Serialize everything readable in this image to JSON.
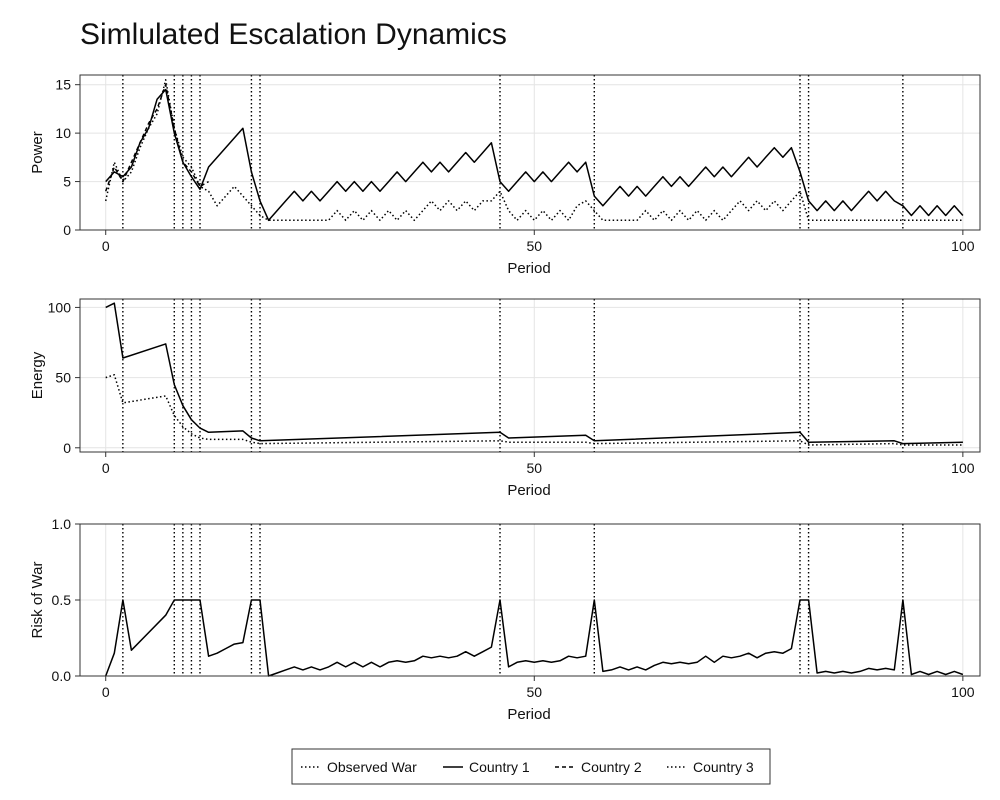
{
  "chart_data": {
    "type": "line",
    "title": "Simlulated Escalation Dynamics",
    "war_periods": [
      2,
      8,
      9,
      10,
      11,
      17,
      18,
      46,
      57,
      81,
      82,
      93
    ],
    "legend": {
      "placement": "bottom-center",
      "entries": [
        {
          "name": "Observed War",
          "style": "dotted"
        },
        {
          "name": "Country 1",
          "style": "solid"
        },
        {
          "name": "Country 2",
          "style": "dashed"
        },
        {
          "name": "Country 3",
          "style": "dotted"
        }
      ]
    },
    "panels": [
      {
        "id": "power",
        "ylabel": "Power",
        "xlabel": "Period",
        "xlim": [
          -3,
          102
        ],
        "ylim": [
          0,
          16
        ],
        "xticks": [
          0,
          50,
          100
        ],
        "yticks": [
          0,
          5,
          10,
          15
        ],
        "ytick_labels": [
          "0",
          "5",
          "10",
          "15"
        ],
        "grid": true,
        "series": [
          {
            "name": "Country 1",
            "style": "solid",
            "x": [
              0,
              1,
              2,
              3,
              4,
              5,
              6,
              7,
              8,
              9,
              10,
              11,
              12,
              16,
              17,
              18,
              19,
              20,
              21,
              22,
              23,
              24,
              25,
              26,
              27,
              28,
              29,
              30,
              31,
              32,
              33,
              34,
              35,
              36,
              37,
              38,
              39,
              40,
              41,
              42,
              43,
              44,
              45,
              46,
              47,
              48,
              49,
              50,
              51,
              52,
              53,
              54,
              55,
              56,
              57,
              58,
              59,
              60,
              61,
              62,
              63,
              64,
              65,
              66,
              67,
              68,
              69,
              70,
              71,
              72,
              73,
              74,
              75,
              76,
              77,
              78,
              79,
              80,
              81,
              82,
              83,
              84,
              85,
              86,
              87,
              88,
              89,
              90,
              91,
              92,
              93,
              94,
              95,
              96,
              97,
              98,
              99,
              100
            ],
            "y": [
              5,
              6,
              5.5,
              6.5,
              9,
              10.5,
              13.5,
              14.5,
              10,
              7,
              5.5,
              4.2,
              6.5,
              10.5,
              6,
              3,
              1,
              2,
              3,
              4,
              3,
              4,
              3,
              4,
              5,
              4,
              5,
              4,
              5,
              4,
              5,
              6,
              5,
              6,
              7,
              6,
              7,
              6,
              7,
              8,
              7,
              8,
              9,
              5,
              4,
              5,
              6,
              5,
              6,
              5,
              6,
              7,
              6,
              7,
              3.5,
              2.5,
              3.5,
              4.5,
              3.5,
              4.5,
              3.5,
              4.5,
              5.5,
              4.5,
              5.5,
              4.5,
              5.5,
              6.5,
              5.5,
              6.5,
              5.5,
              6.5,
              7.5,
              6.5,
              7.5,
              8.5,
              7.5,
              8.5,
              6,
              3,
              2,
              3,
              2,
              3,
              2,
              3,
              4,
              3,
              4,
              3,
              2.5,
              1.5,
              2.5,
              1.5,
              2.5,
              1.5,
              2.5,
              1.5
            ]
          },
          {
            "name": "Country 2",
            "style": "dashed",
            "x": [
              0,
              1,
              2,
              3,
              4,
              5,
              6,
              7,
              8,
              9,
              10,
              11,
              12
            ],
            "y": [
              4,
              6.5,
              5,
              7,
              9,
              11,
              12.5,
              15,
              10.5,
              7,
              6,
              4.5,
              5
            ]
          },
          {
            "name": "Country 3",
            "style": "dotted",
            "x": [
              0,
              1,
              2,
              3,
              4,
              5,
              6,
              7,
              8,
              9,
              10,
              11,
              12,
              13,
              14,
              15,
              16,
              17,
              18,
              19,
              20,
              21,
              22,
              23,
              24,
              25,
              26,
              27,
              28,
              29,
              30,
              31,
              32,
              33,
              34,
              35,
              36,
              37,
              38,
              39,
              40,
              41,
              42,
              43,
              44,
              45,
              46,
              47,
              48,
              49,
              50,
              51,
              52,
              53,
              54,
              55,
              56,
              57,
              58,
              59,
              60,
              61,
              62,
              63,
              64,
              65,
              66,
              67,
              68,
              69,
              70,
              71,
              72,
              73,
              74,
              75,
              76,
              77,
              78,
              79,
              80,
              81,
              82,
              83,
              84,
              85,
              86,
              87,
              88,
              89,
              90,
              91,
              92,
              93,
              94,
              95,
              96,
              97,
              98,
              99,
              100
            ],
            "y": [
              3,
              7,
              5,
              6,
              8.5,
              10.5,
              12,
              15.5,
              10.5,
              7.5,
              6.5,
              4.5,
              4,
              2.5,
              3.5,
              4.5,
              3.5,
              2.5,
              1.5,
              1,
              1,
              1,
              1,
              1,
              1,
              1,
              1,
              2,
              1,
              2,
              1,
              2,
              1,
              2,
              1,
              2,
              1,
              2,
              3,
              2,
              3,
              2,
              3,
              2,
              3,
              3,
              4,
              2,
              1,
              2,
              1,
              2,
              1,
              2,
              1,
              2.5,
              3,
              2,
              1,
              1,
              1,
              1,
              1,
              2,
              1,
              2,
              1,
              2,
              1,
              2,
              1,
              2,
              1,
              2,
              3,
              2,
              3,
              2,
              3,
              2,
              3,
              4,
              1,
              1,
              1,
              1,
              1,
              1,
              1,
              1,
              1,
              1,
              1,
              1,
              1,
              1,
              1,
              1,
              1,
              1,
              1
            ]
          }
        ]
      },
      {
        "id": "energy",
        "ylabel": "Energy",
        "xlabel": "Period",
        "xlim": [
          -3,
          102
        ],
        "ylim": [
          -3,
          106
        ],
        "xticks": [
          0,
          50,
          100
        ],
        "yticks": [
          0,
          50,
          100
        ],
        "ytick_labels": [
          "0",
          "50",
          "100"
        ],
        "grid": true,
        "series": [
          {
            "name": "Country 1",
            "style": "solid",
            "x": [
              0,
              1,
              2,
              7,
              8,
              9,
              10,
              11,
              12,
              16,
              17,
              18,
              46,
              47,
              56,
              57,
              81,
              82,
              92,
              93,
              100
            ],
            "y": [
              100,
              103,
              64,
              74,
              45,
              30,
              20,
              14,
              11,
              12,
              7,
              5,
              11,
              7,
              9,
              5,
              11,
              4,
              5,
              3,
              4
            ]
          },
          {
            "name": "Country 3",
            "style": "dotted",
            "x": [
              0,
              1,
              2,
              7,
              8,
              9,
              10,
              11,
              12,
              16,
              17,
              18,
              46,
              47,
              56,
              57,
              81,
              82,
              92,
              93,
              100
            ],
            "y": [
              50,
              52,
              32,
              37,
              23,
              15,
              10,
              7,
              6,
              6,
              4,
              3,
              5,
              4,
              4,
              3,
              5,
              2,
              3,
              2,
              2
            ]
          }
        ]
      },
      {
        "id": "risk",
        "ylabel": "Risk of War",
        "xlabel": "Period",
        "xlim": [
          -3,
          102
        ],
        "ylim": [
          0,
          1
        ],
        "xticks": [
          0,
          50,
          100
        ],
        "yticks": [
          0,
          0.5,
          1
        ],
        "ytick_labels": [
          "0.0",
          "0.5",
          "1.0"
        ],
        "grid": true,
        "series": [
          {
            "name": "Country 1",
            "style": "solid",
            "x": [
              0,
              1,
              2,
              3,
              7,
              8,
              9,
              10,
              11,
              12,
              13,
              14,
              15,
              16,
              17,
              18,
              19,
              20,
              21,
              22,
              23,
              24,
              25,
              26,
              27,
              28,
              29,
              30,
              31,
              32,
              33,
              34,
              35,
              36,
              37,
              38,
              39,
              40,
              41,
              42,
              43,
              44,
              45,
              46,
              47,
              48,
              49,
              50,
              51,
              52,
              53,
              54,
              55,
              56,
              57,
              58,
              59,
              60,
              61,
              62,
              63,
              64,
              65,
              66,
              67,
              68,
              69,
              70,
              71,
              72,
              73,
              74,
              75,
              76,
              77,
              78,
              79,
              80,
              81,
              82,
              83,
              84,
              85,
              86,
              87,
              88,
              89,
              90,
              91,
              92,
              93,
              94,
              95,
              96,
              97,
              98,
              99,
              100
            ],
            "y": [
              0,
              0.15,
              0.5,
              0.17,
              0.4,
              0.5,
              0.5,
              0.5,
              0.5,
              0.13,
              0.15,
              0.18,
              0.21,
              0.22,
              0.5,
              0.5,
              0,
              0.02,
              0.04,
              0.06,
              0.04,
              0.06,
              0.04,
              0.06,
              0.09,
              0.06,
              0.09,
              0.06,
              0.09,
              0.06,
              0.09,
              0.1,
              0.09,
              0.1,
              0.13,
              0.12,
              0.13,
              0.12,
              0.13,
              0.16,
              0.13,
              0.16,
              0.19,
              0.5,
              0.06,
              0.09,
              0.1,
              0.09,
              0.1,
              0.09,
              0.1,
              0.13,
              0.12,
              0.13,
              0.5,
              0.03,
              0.04,
              0.06,
              0.04,
              0.06,
              0.04,
              0.07,
              0.09,
              0.08,
              0.09,
              0.08,
              0.09,
              0.13,
              0.09,
              0.13,
              0.12,
              0.13,
              0.15,
              0.12,
              0.15,
              0.16,
              0.15,
              0.18,
              0.5,
              0.5,
              0.02,
              0.03,
              0.02,
              0.03,
              0.02,
              0.03,
              0.05,
              0.04,
              0.05,
              0.04,
              0.5,
              0.01,
              0.03,
              0.01,
              0.03,
              0.01,
              0.03,
              0.01
            ]
          }
        ]
      }
    ]
  }
}
